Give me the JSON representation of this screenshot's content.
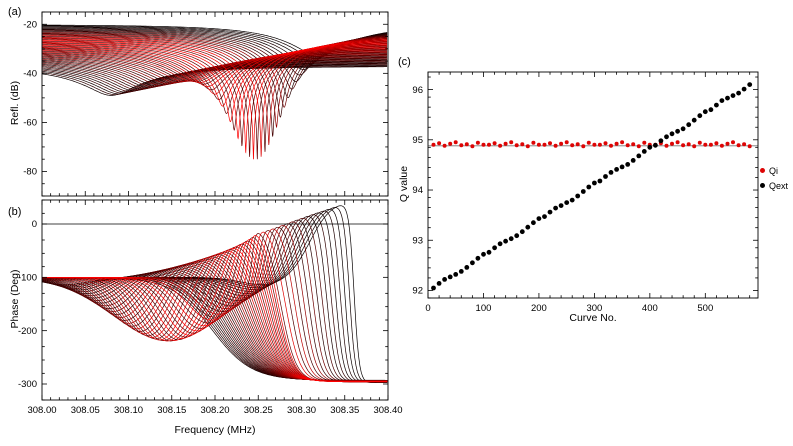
{
  "labels": {
    "a": "(a)",
    "b": "(b)",
    "c": "(c)"
  },
  "axes": {
    "refl_ylabel": "Refl. (dB)",
    "phase_ylabel": "Phase (Deg)",
    "freq_xlabel": "Frequency (MHz)",
    "q_ylabel": "Q value",
    "curve_xlabel": "Curve No."
  },
  "legend": {
    "items": [
      {
        "label": "Qi",
        "color": "#dd0505"
      },
      {
        "label": "Qext",
        "color": "#000000"
      }
    ]
  },
  "colors": {
    "curve_red": "#ff0000",
    "curve_black": "#000000",
    "frame": "#000000",
    "reference_line": "#777777",
    "background": "#ffffff"
  },
  "chart_data": [
    {
      "id": "a",
      "type": "line",
      "panel": "(a)",
      "ylabel": "Refl. (dB)",
      "xlim": [
        308.0,
        308.4
      ],
      "ylim": [
        -90,
        -15
      ],
      "xticks": [
        308.0,
        308.05,
        308.1,
        308.15,
        308.2,
        308.25,
        308.3,
        308.35,
        308.4
      ],
      "yticks": [
        -20,
        -40,
        -60,
        -80
      ],
      "x_minor_step": 0.01,
      "y_minor_step": 5,
      "show_xtick_labels": false,
      "xtick_decimals": 2,
      "grid": false,
      "description": "Family of reflection resonance curves, color graded black to red; dips sweep in frequency and depth",
      "family": {
        "n": 55,
        "f0_first": 308.32,
        "f0_last": 308.08,
        "hwhm_mhz": 0.09,
        "baseline_db_first": -20,
        "baseline_db_last": -37,
        "dip_rel_db_edge": -12,
        "dip_rel_db_peak": -50,
        "dip_peak_t": 0.3,
        "dip_width_t": 0.16,
        "deepest_db": -75,
        "deepest_freq_mhz": 308.25
      }
    },
    {
      "id": "b",
      "type": "line",
      "panel": "(b)",
      "ylabel": "Phase (Deg)",
      "xlabel": "Frequency (MHz)",
      "xlim": [
        308.0,
        308.4
      ],
      "ylim": [
        -330,
        45
      ],
      "xticks": [
        308.0,
        308.05,
        308.1,
        308.15,
        308.2,
        308.25,
        308.3,
        308.35,
        308.4
      ],
      "yticks": [
        0,
        -100,
        -200,
        -300
      ],
      "x_minor_step": 0.01,
      "y_minor_step": 25,
      "show_xtick_labels": true,
      "xtick_decimals": 2,
      "hline": 0,
      "grid": false,
      "description": "Phase of reflection: curves start near -100 deg, wrap through resonance, settle near -300 deg; sharp jumps near 308.25 MHz",
      "family": {
        "n": 55,
        "f0_first": 308.315,
        "f0_last": 308.085,
        "left_level_deg": -100,
        "right_level_deg": -297,
        "peak_deg_first": 45,
        "peak_deg_last": -100,
        "droop_deg_max": 120,
        "droop_center_t": 0.5,
        "droop_width_t": 0.35,
        "rise_sharp": 0.002,
        "rise_slope": 0.035,
        "fall_base": 0.003,
        "fall_slope": 0.02
      }
    },
    {
      "id": "c",
      "type": "scatter",
      "panel": "(c)",
      "ylabel": "Q value",
      "xlabel": "Curve No.",
      "xlim": [
        0,
        595
      ],
      "ylim": [
        91.85,
        96.35
      ],
      "xticks": [
        0,
        100,
        200,
        300,
        400,
        500
      ],
      "yticks": [
        92,
        93,
        94,
        95,
        96
      ],
      "x_minor_step": 20,
      "y_minor_step": 0.2,
      "show_xtick_labels": true,
      "xtick_decimals": 0,
      "hline": 94.88,
      "grid": false,
      "legend_position": "right",
      "series": [
        {
          "name": "Qi",
          "color": "#dd0505",
          "marker_r": 2.0,
          "x": [
            10,
            20,
            30,
            40,
            50,
            60,
            70,
            80,
            90,
            100,
            110,
            120,
            130,
            140,
            150,
            160,
            170,
            180,
            190,
            200,
            210,
            220,
            230,
            240,
            250,
            260,
            270,
            280,
            290,
            300,
            310,
            320,
            330,
            340,
            350,
            360,
            370,
            380,
            390,
            400,
            410,
            420,
            430,
            440,
            450,
            460,
            470,
            480,
            490,
            500,
            510,
            520,
            530,
            540,
            550,
            560,
            570,
            580
          ],
          "y": [
            94.9,
            94.93,
            94.88,
            94.92,
            94.95,
            94.89,
            94.91,
            94.87,
            94.94,
            94.9,
            94.9,
            94.93,
            94.88,
            94.92,
            94.95,
            94.89,
            94.91,
            94.87,
            94.94,
            94.9,
            94.9,
            94.93,
            94.88,
            94.92,
            94.95,
            94.89,
            94.91,
            94.87,
            94.94,
            94.9,
            94.9,
            94.93,
            94.88,
            94.92,
            94.95,
            94.89,
            94.91,
            94.87,
            94.94,
            94.9,
            94.9,
            94.93,
            94.88,
            94.92,
            94.95,
            94.89,
            94.91,
            94.87,
            94.94,
            94.9,
            94.9,
            94.93,
            94.88,
            94.92,
            94.95,
            94.89,
            94.91,
            94.87
          ]
        },
        {
          "name": "Qext",
          "color": "#000000",
          "marker_r": 2.4,
          "x": [
            10,
            20,
            30,
            40,
            50,
            60,
            70,
            80,
            90,
            100,
            110,
            120,
            130,
            140,
            150,
            160,
            170,
            180,
            190,
            200,
            210,
            220,
            230,
            240,
            250,
            260,
            270,
            280,
            290,
            300,
            310,
            320,
            330,
            340,
            350,
            360,
            370,
            380,
            390,
            400,
            410,
            420,
            430,
            440,
            450,
            460,
            470,
            480,
            490,
            500,
            510,
            520,
            530,
            540,
            550,
            560,
            570,
            580
          ],
          "y": [
            92.05,
            92.14,
            92.22,
            92.27,
            92.32,
            92.38,
            92.46,
            92.55,
            92.64,
            92.72,
            92.76,
            92.85,
            92.93,
            92.98,
            93.03,
            93.09,
            93.17,
            93.26,
            93.35,
            93.43,
            93.47,
            93.56,
            93.64,
            93.69,
            93.75,
            93.8,
            93.88,
            93.97,
            94.06,
            94.14,
            94.18,
            94.27,
            94.35,
            94.41,
            94.46,
            94.51,
            94.59,
            94.68,
            94.77,
            94.85,
            94.89,
            94.98,
            95.06,
            95.12,
            95.17,
            95.22,
            95.3,
            95.39,
            95.48,
            95.56,
            95.6,
            95.69,
            95.78,
            95.83,
            95.88,
            95.93,
            96.01,
            96.1
          ]
        }
      ]
    }
  ]
}
